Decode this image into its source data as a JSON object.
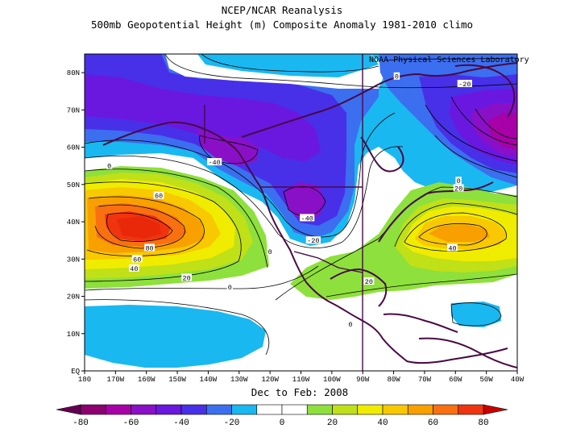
{
  "titles": {
    "line1": "NCEP/NCAR Reanalysis",
    "line2": "500mb Geopotential Height (m) Composite Anomaly 1981-2010 climo",
    "credit": "NOAA Physical Sciences Laboratory",
    "period": "Dec to Feb: 2008"
  },
  "map": {
    "lon_range": [
      -180,
      -40
    ],
    "lat_range": [
      0,
      85
    ],
    "lat_ticks": [
      "EQ",
      "10N",
      "20N",
      "30N",
      "40N",
      "50N",
      "60N",
      "70N",
      "80N"
    ],
    "lon_ticks": [
      "180",
      "170W",
      "160W",
      "150W",
      "140W",
      "130W",
      "120W",
      "110W",
      "100W",
      "90W",
      "80W",
      "70W",
      "60W",
      "50W",
      "40W"
    ]
  },
  "contour_labels": [
    {
      "text": "-20",
      "lon": -57,
      "lat": 77
    },
    {
      "text": "0",
      "lon": -79,
      "lat": 79
    },
    {
      "text": "-40",
      "lon": -138,
      "lat": 56
    },
    {
      "text": "0",
      "lon": -172,
      "lat": 55
    },
    {
      "text": "60",
      "lon": -156,
      "lat": 47
    },
    {
      "text": "80",
      "lon": -159,
      "lat": 33
    },
    {
      "text": "60",
      "lon": -163,
      "lat": 30
    },
    {
      "text": "40",
      "lon": -164,
      "lat": 27.5
    },
    {
      "text": "20",
      "lon": -147,
      "lat": 25
    },
    {
      "text": "-40",
      "lon": -108,
      "lat": 41
    },
    {
      "text": "-20",
      "lon": -106,
      "lat": 35
    },
    {
      "text": "0",
      "lon": -120,
      "lat": 32
    },
    {
      "text": "0",
      "lon": -133,
      "lat": 22.5
    },
    {
      "text": "0",
      "lon": -59,
      "lat": 51
    },
    {
      "text": "20",
      "lon": -59,
      "lat": 49
    },
    {
      "text": "40",
      "lon": -61,
      "lat": 33
    },
    {
      "text": "20",
      "lon": -88,
      "lat": 24
    },
    {
      "text": "0",
      "lon": -94,
      "lat": 12.5
    }
  ],
  "colorbar": {
    "labels": [
      "-80",
      "-60",
      "-40",
      "-20",
      "0",
      "20",
      "40",
      "60",
      "80"
    ],
    "colors": [
      "#8c0070",
      "#a800a8",
      "#8a10c8",
      "#6a18e0",
      "#4830e8",
      "#3c6ef0",
      "#1ab8f0",
      "#ffffff",
      "#ffffff",
      "#8ee03c",
      "#c0e018",
      "#f0ec00",
      "#f8c800",
      "#f8a000",
      "#f87010",
      "#f03410"
    ],
    "tail_low": "#640050",
    "tail_high": "#c80000"
  },
  "colors": {
    "positive_high": "#e82808",
    "positive_mid": "#f8a000",
    "positive_low": "#8ee03c",
    "negative_low": "#1ab8f0",
    "negative_mid": "#4830e8",
    "negative_high": "#8a10c8",
    "coast": "#4a0844"
  }
}
